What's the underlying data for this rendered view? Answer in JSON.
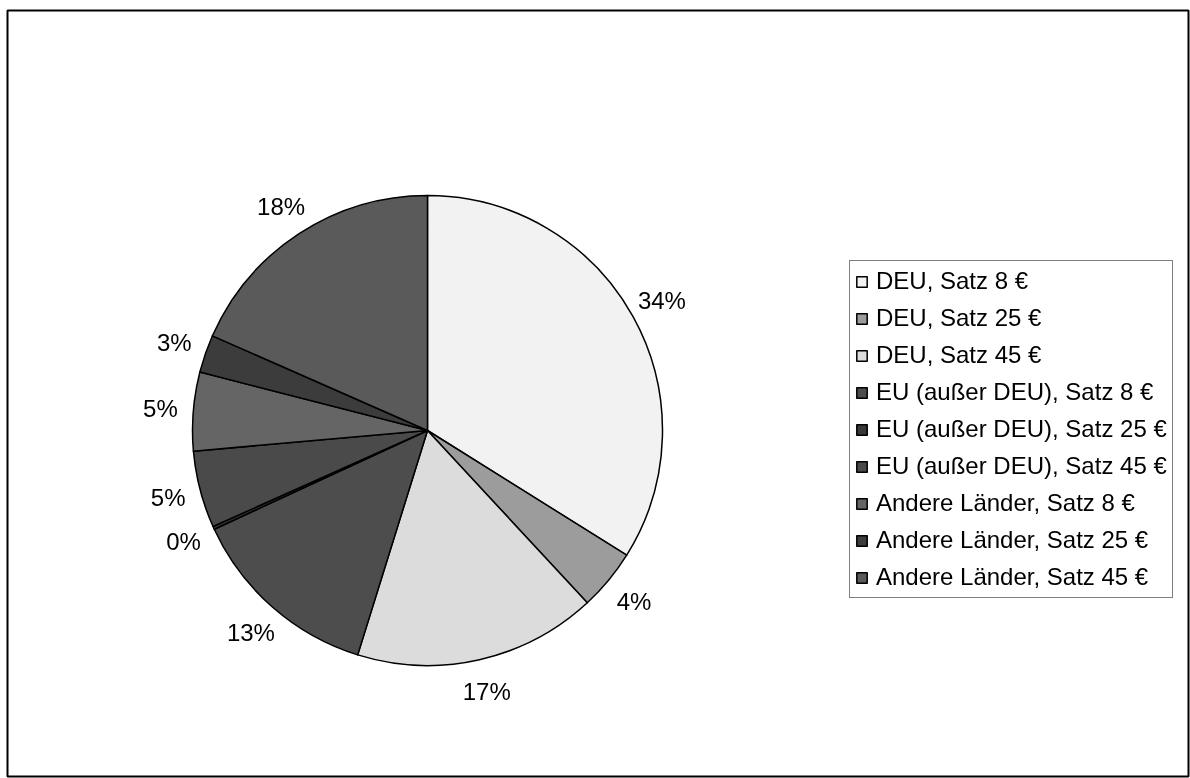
{
  "chart_data": {
    "type": "pie",
    "categories": [
      "DEU, Satz 8 €",
      "DEU, Satz 25 €",
      "DEU, Satz 45 €",
      "EU (außer DEU), Satz 8 €",
      "EU (außer DEU), Satz 25 €",
      "EU (außer DEU), Satz 45 €",
      "Andere Länder, Satz 8 €",
      "Andere Länder, Satz 25 €",
      "Andere Länder, Satz 45 €"
    ],
    "values": [
      33.9,
      4.2,
      16.7,
      13.3,
      0.2,
      5.3,
      5.4,
      2.6,
      18.4
    ],
    "value_labels": [
      "34%",
      "4%",
      "17%",
      "13%",
      "0%",
      "5%",
      "5%",
      "3%",
      "18%"
    ],
    "colors": [
      "#f2f2f2",
      "#9c9c9c",
      "#dcdcdc",
      "#4d4d4d",
      "#383838",
      "#4a4a4a",
      "#656565",
      "#3c3c3c",
      "#5a5a5a"
    ],
    "legend": "right"
  }
}
